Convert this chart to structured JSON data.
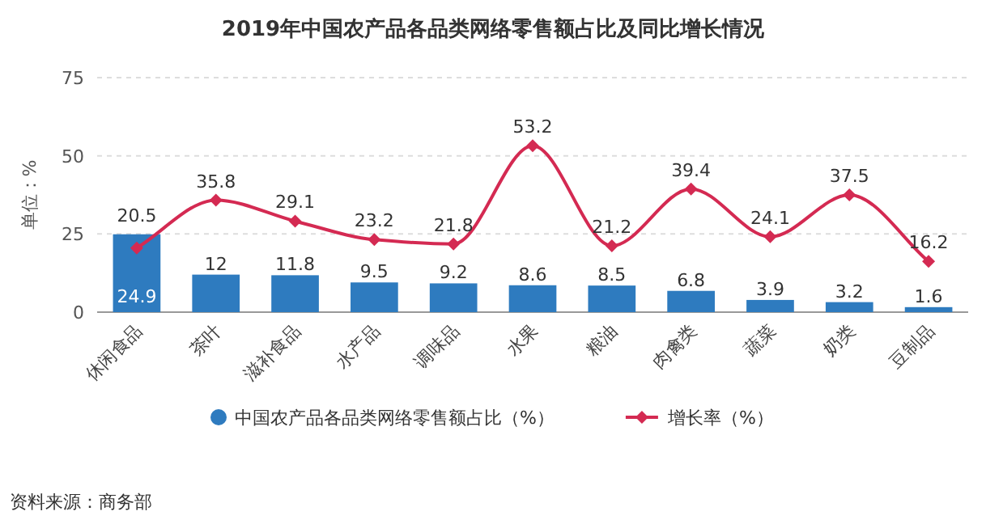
{
  "chart_data": {
    "type": "bar",
    "title": "2019年中国农产品各品类网络零售额占比及同比增长情况",
    "ylabel": "单位：%",
    "categories": [
      "休闲食品",
      "茶叶",
      "滋补食品",
      "水产品",
      "调味品",
      "水果",
      "粮油",
      "肉禽类",
      "蔬菜",
      "奶类",
      "豆制品"
    ],
    "series": [
      {
        "name": "中国农产品各品类网络零售额占比（%）",
        "color": "#2e7bbf",
        "values": [
          24.9,
          12,
          11.8,
          9.5,
          9.2,
          8.6,
          8.5,
          6.8,
          3.9,
          3.2,
          1.6
        ]
      },
      {
        "name": "增长率（%）",
        "type": "line",
        "color": "#d42a52",
        "marker": "diamond",
        "values": [
          20.5,
          35.8,
          29.1,
          23.2,
          21.8,
          53.2,
          21.2,
          39.4,
          24.1,
          37.5,
          16.2
        ]
      }
    ],
    "ylim": [
      0,
      75
    ],
    "yticks": [
      0,
      25,
      50,
      75
    ],
    "grid": "y",
    "legend": "bottom",
    "data_labels": true,
    "annotations": [
      "资料来源：商务部"
    ]
  }
}
